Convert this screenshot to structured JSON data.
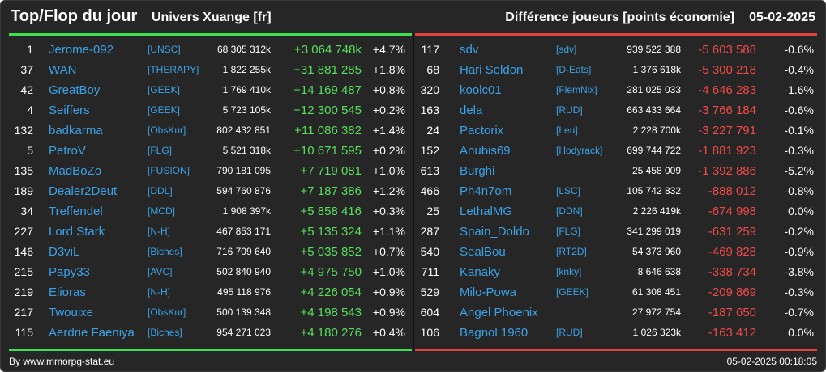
{
  "header": {
    "title": "Top/Flop du jour",
    "universe": "Univers Xuange [fr]",
    "metric": "Différence joueurs [points économie]",
    "date": "05-02-2025"
  },
  "colors": {
    "top_accent": "#3ee052",
    "flop_accent": "#e0443e",
    "name_color": "#3aa3e8"
  },
  "top": [
    {
      "rank": "1",
      "name": "Jerome-092",
      "ally": "[UNSC]",
      "points": "68 305 312k",
      "diff": "+3 064 748k",
      "pct": "+4.7%"
    },
    {
      "rank": "37",
      "name": "WAN",
      "ally": "[THERAPY]",
      "points": "1 822 255k",
      "diff": "+31 881 285",
      "pct": "+1.8%"
    },
    {
      "rank": "42",
      "name": "GreatBoy",
      "ally": "[GEEK]",
      "points": "1 769 410k",
      "diff": "+14 169 487",
      "pct": "+0.8%"
    },
    {
      "rank": "4",
      "name": "Seiffers",
      "ally": "[GEEK]",
      "points": "5 723 105k",
      "diff": "+12 300 545",
      "pct": "+0.2%"
    },
    {
      "rank": "132",
      "name": "badkarma",
      "ally": "[ObsKur]",
      "points": "802 432 851",
      "diff": "+11 086 382",
      "pct": "+1.4%"
    },
    {
      "rank": "5",
      "name": "PetroV",
      "ally": "[FLG]",
      "points": "5 521 318k",
      "diff": "+10 671 595",
      "pct": "+0.2%"
    },
    {
      "rank": "135",
      "name": "MadBoZo",
      "ally": "[FUSION]",
      "points": "790 181 095",
      "diff": "+7 719 081",
      "pct": "+1.0%"
    },
    {
      "rank": "189",
      "name": "Dealer2Deut",
      "ally": "[DDL]",
      "points": "594 760 876",
      "diff": "+7 187 386",
      "pct": "+1.2%"
    },
    {
      "rank": "34",
      "name": "Treffendel",
      "ally": "[MCD]",
      "points": "1 908 397k",
      "diff": "+5 858 416",
      "pct": "+0.3%"
    },
    {
      "rank": "227",
      "name": "Lord Stark",
      "ally": "[N-H]",
      "points": "467 853 171",
      "diff": "+5 135 324",
      "pct": "+1.1%"
    },
    {
      "rank": "146",
      "name": "D3viL",
      "ally": "[Biches]",
      "points": "716 709 640",
      "diff": "+5 035 852",
      "pct": "+0.7%"
    },
    {
      "rank": "215",
      "name": "Papy33",
      "ally": "[AVC]",
      "points": "502 840 940",
      "diff": "+4 975 750",
      "pct": "+1.0%"
    },
    {
      "rank": "219",
      "name": "Elioras",
      "ally": "[N-H]",
      "points": "495 118 976",
      "diff": "+4 226 054",
      "pct": "+0.9%"
    },
    {
      "rank": "217",
      "name": "Twouixe",
      "ally": "[ObsKur]",
      "points": "500 139 348",
      "diff": "+4 198 543",
      "pct": "+0.9%"
    },
    {
      "rank": "115",
      "name": "Aerdrie Faeniya",
      "ally": "[Biches]",
      "points": "954 271 023",
      "diff": "+4 180 276",
      "pct": "+0.4%"
    }
  ],
  "flop": [
    {
      "rank": "117",
      "name": "sdv",
      "ally": "[sdv]",
      "points": "939 522 388",
      "diff": "-5 603 588",
      "pct": "-0.6%"
    },
    {
      "rank": "68",
      "name": "Hari Seldon",
      "ally": "[D-Eats]",
      "points": "1 376 618k",
      "diff": "-5 300 218",
      "pct": "-0.4%"
    },
    {
      "rank": "320",
      "name": "koolc01",
      "ally": "[FlemNix]",
      "points": "281 025 033",
      "diff": "-4 646 283",
      "pct": "-1.6%"
    },
    {
      "rank": "163",
      "name": "dela",
      "ally": "[RUD]",
      "points": "663 433 664",
      "diff": "-3 766 184",
      "pct": "-0.6%"
    },
    {
      "rank": "24",
      "name": "Pactorix",
      "ally": "[Leu]",
      "points": "2 228 700k",
      "diff": "-3 227 791",
      "pct": "-0.1%"
    },
    {
      "rank": "152",
      "name": "Anubis69",
      "ally": "[Hodyrack]",
      "points": "699 744 722",
      "diff": "-1 881 923",
      "pct": "-0.3%"
    },
    {
      "rank": "613",
      "name": "Burghi",
      "ally": "",
      "points": "25 458 009",
      "diff": "-1 392 886",
      "pct": "-5.2%"
    },
    {
      "rank": "466",
      "name": "Ph4n7om",
      "ally": "[LSC]",
      "points": "105 742 832",
      "diff": "-888 012",
      "pct": "-0.8%"
    },
    {
      "rank": "25",
      "name": "LethalMG",
      "ally": "[DDN]",
      "points": "2 226 419k",
      "diff": "-674 998",
      "pct": "0.0%"
    },
    {
      "rank": "287",
      "name": "Spain_Doldo",
      "ally": "[FLG]",
      "points": "341 299 019",
      "diff": "-631 259",
      "pct": "-0.2%"
    },
    {
      "rank": "540",
      "name": "SealBou",
      "ally": "[RT2D]",
      "points": "54 373 960",
      "diff": "-469 828",
      "pct": "-0.9%"
    },
    {
      "rank": "711",
      "name": "Kanaky",
      "ally": "[knky]",
      "points": "8 646 638",
      "diff": "-338 734",
      "pct": "-3.8%"
    },
    {
      "rank": "529",
      "name": "Milo-Powa",
      "ally": "[GEEK]",
      "points": "61 308 451",
      "diff": "-209 869",
      "pct": "-0.3%"
    },
    {
      "rank": "604",
      "name": "Angel Phoenix",
      "ally": "",
      "points": "27 972 754",
      "diff": "-187 650",
      "pct": "-0.7%"
    },
    {
      "rank": "106",
      "name": "Bagnol 1960",
      "ally": "[RUD]",
      "points": "1 026 323k",
      "diff": "-163 412",
      "pct": "0.0%"
    }
  ],
  "footer": {
    "credit": "By www.mmorpg-stat.eu",
    "timestamp": "05-02-2025 00:18:05"
  }
}
